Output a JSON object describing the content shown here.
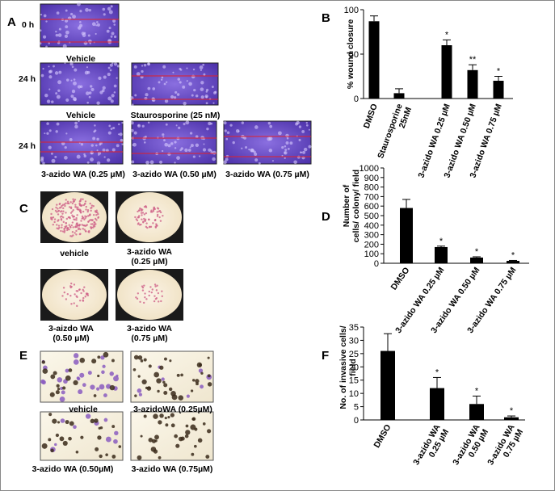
{
  "figure": {
    "panels": [
      "A",
      "B",
      "C",
      "D",
      "E",
      "F"
    ],
    "a": {
      "row_labels": [
        "0 h",
        "24 h",
        "24 h"
      ],
      "captions": [
        "Vehicle",
        "Vehicle",
        "Staurosporine (25 nM)",
        "3-azido WA (0.25 µM)",
        "3-azido WA (0.50 µM)",
        "3-azido WA (0.75 µM)"
      ]
    },
    "c": {
      "captions": [
        "vehicle",
        "3-azido WA\n(0.25 µM)",
        "3-aizdo WA\n(0.50 µM)",
        "3-azido WA\n(0.75 µM)"
      ]
    },
    "e": {
      "captions": [
        "vehicle",
        "3-azidoWA (0.25µM)",
        "3-azido WA (0.50µM)",
        "3-azido WA (0.75µM)"
      ]
    }
  },
  "chart_data": [
    {
      "type": "bar",
      "y_label": "% wound closure",
      "color": "#000000",
      "categories": [
        "DMSO",
        "Staurosporine\n25nM",
        "3-azido WA  0.25 µM",
        "3-azido WA  0.50 µM",
        "3-azido WA  0.75 µM"
      ],
      "values": [
        87,
        6,
        60,
        32,
        20
      ],
      "errors": [
        6,
        5,
        6,
        6,
        5
      ],
      "annotations": [
        null,
        null,
        "*",
        "**",
        "*"
      ],
      "ylim": [
        0,
        100
      ],
      "yticks": [
        0,
        50,
        100
      ]
    },
    {
      "type": "bar",
      "y_label": "Number  of\ncells/ colony/ field",
      "color": "#000000",
      "categories": [
        "DMSO",
        "3-azido WA  0.25 µM",
        "3-azido WA  0.50 µM",
        "3-azido WA  0.75 µM"
      ],
      "values": [
        580,
        170,
        60,
        25
      ],
      "errors": [
        90,
        10,
        8,
        5
      ],
      "annotations": [
        null,
        "*",
        "*",
        "*"
      ],
      "ylim": [
        0,
        1000
      ],
      "yticks": [
        0,
        100,
        200,
        300,
        400,
        500,
        600,
        700,
        800,
        900,
        1000
      ]
    },
    {
      "type": "bar",
      "y_label": "No. of invasive cells/\nfield",
      "color": "#000000",
      "categories": [
        "DMSO",
        "3-azido WA\n0.25 µM",
        "3-azido WA\n0.50 µM",
        "3-azido WA\n0.75 µM"
      ],
      "values": [
        26,
        12,
        6,
        1
      ],
      "errors": [
        6.5,
        4,
        3,
        0.5
      ],
      "annotations": [
        null,
        "*",
        "*",
        "*"
      ],
      "ylim": [
        0,
        35
      ],
      "yticks": [
        0,
        5,
        10,
        15,
        20,
        25,
        30,
        35
      ]
    }
  ]
}
